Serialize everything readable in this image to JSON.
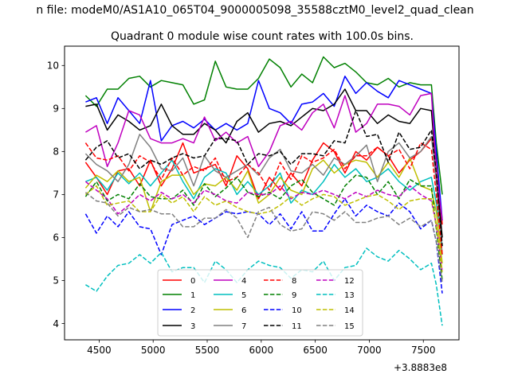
{
  "suptitle": "n file: modeM0/AS1A10_065T04_9000005098_35588cztM0_level2_quad_clean",
  "chart_data": {
    "type": "line",
    "title": "Quadrant 0 module wise count rates with 100.0s bins.",
    "xlabel": "",
    "ylabel": "",
    "offset_text": "+3.8883e8",
    "xlim": [
      4180,
      7830
    ],
    "ylim": [
      3.62,
      10.45
    ],
    "xticks": [
      4500,
      5000,
      5500,
      6000,
      6500,
      7000,
      7500
    ],
    "yticks": [
      4,
      5,
      6,
      7,
      8,
      9,
      10
    ],
    "grid": false,
    "legend": {
      "placement": "lower-center",
      "columns": 4
    },
    "x": [
      4375,
      4475,
      4575,
      4675,
      4775,
      4875,
      4975,
      5075,
      5175,
      5275,
      5375,
      5475,
      5575,
      5675,
      5775,
      5875,
      5975,
      6075,
      6175,
      6275,
      6375,
      6475,
      6575,
      6675,
      6775,
      6875,
      6975,
      7075,
      7175,
      7275,
      7375,
      7475,
      7575,
      7620,
      7675
    ],
    "series": [
      {
        "name": "0",
        "color": "#ff0000",
        "dash": false,
        "values": [
          7.75,
          7.4,
          7.0,
          7.55,
          7.6,
          7.2,
          7.8,
          7.2,
          7.6,
          8.2,
          7.5,
          7.6,
          7.7,
          7.2,
          7.9,
          7.6,
          6.9,
          7.4,
          7.1,
          7.5,
          7.2,
          7.8,
          8.2,
          8.0,
          7.5,
          8.0,
          7.8,
          8.1,
          7.9,
          7.5,
          7.8,
          8.0,
          8.3,
          7.9,
          6.3
        ]
      },
      {
        "name": "1",
        "color": "#008000",
        "dash": false,
        "values": [
          9.3,
          9.05,
          9.45,
          9.45,
          9.7,
          9.75,
          9.5,
          9.65,
          9.6,
          9.55,
          9.1,
          9.2,
          10.1,
          9.5,
          9.45,
          9.45,
          9.7,
          10.15,
          9.95,
          9.5,
          9.8,
          9.6,
          10.2,
          9.95,
          10.05,
          9.85,
          9.6,
          9.55,
          9.7,
          9.5,
          9.6,
          9.55,
          9.55,
          8.2,
          7.0
        ]
      },
      {
        "name": "2",
        "color": "#0000ff",
        "dash": false,
        "values": [
          9.15,
          9.25,
          8.65,
          9.25,
          8.95,
          8.65,
          9.65,
          8.25,
          8.6,
          8.7,
          8.55,
          8.75,
          8.5,
          8.65,
          8.5,
          8.65,
          9.65,
          9.0,
          8.9,
          8.65,
          9.1,
          9.15,
          9.35,
          9.05,
          9.75,
          9.35,
          9.6,
          9.4,
          9.25,
          9.65,
          9.55,
          9.45,
          9.35,
          8.0,
          6.4
        ]
      },
      {
        "name": "3",
        "color": "#000000",
        "dash": false,
        "values": [
          9.05,
          9.1,
          8.5,
          8.85,
          8.7,
          8.5,
          8.6,
          9.1,
          8.6,
          8.4,
          8.4,
          8.65,
          8.5,
          8.2,
          8.7,
          8.9,
          8.45,
          8.65,
          8.7,
          8.6,
          8.8,
          9.0,
          8.95,
          9.1,
          9.45,
          8.95,
          8.95,
          8.65,
          8.85,
          8.7,
          8.65,
          9.0,
          8.95,
          7.5,
          6.0
        ]
      },
      {
        "name": "4",
        "color": "#bf00bf",
        "dash": false,
        "values": [
          8.45,
          8.6,
          7.65,
          8.2,
          8.95,
          8.85,
          8.3,
          8.2,
          8.2,
          8.3,
          8.2,
          8.8,
          8.25,
          8.45,
          8.2,
          8.35,
          7.65,
          8.0,
          8.6,
          8.7,
          8.5,
          8.9,
          9.1,
          8.55,
          9.3,
          8.45,
          8.65,
          9.1,
          9.1,
          9.05,
          8.85,
          9.3,
          9.35,
          7.5,
          6.4
        ]
      },
      {
        "name": "5",
        "color": "#00bfbf",
        "dash": false,
        "values": [
          7.3,
          7.4,
          7.1,
          7.5,
          7.25,
          7.5,
          7.2,
          7.5,
          7.8,
          7.3,
          6.9,
          7.4,
          7.6,
          7.5,
          7.0,
          7.3,
          7.0,
          7.2,
          7.5,
          6.8,
          7.1,
          7.0,
          7.3,
          7.7,
          7.4,
          7.6,
          7.3,
          7.4,
          7.6,
          7.3,
          7.1,
          7.3,
          7.4,
          6.8,
          5.8
        ]
      },
      {
        "name": "6",
        "color": "#bfbf00",
        "dash": false,
        "values": [
          7.15,
          7.45,
          7.3,
          7.55,
          7.3,
          7.4,
          6.6,
          7.3,
          7.45,
          7.45,
          7.0,
          7.25,
          7.2,
          7.4,
          7.1,
          7.55,
          6.8,
          7.0,
          7.4,
          7.1,
          7.0,
          7.6,
          7.8,
          7.5,
          7.7,
          7.8,
          7.75,
          7.4,
          7.75,
          7.4,
          7.85,
          7.2,
          7.1,
          6.6,
          5.4
        ]
      },
      {
        "name": "7",
        "color": "#808080",
        "dash": false,
        "values": [
          7.95,
          7.7,
          7.55,
          7.3,
          7.7,
          8.4,
          8.1,
          7.6,
          7.55,
          7.85,
          7.2,
          7.9,
          7.55,
          7.4,
          7.55,
          7.7,
          7.45,
          7.85,
          8.05,
          7.55,
          7.5,
          7.7,
          7.45,
          7.85,
          7.7,
          7.9,
          8.15,
          7.3,
          8.0,
          8.2,
          7.85,
          8.0,
          8.35,
          7.3,
          5.6
        ]
      },
      {
        "name": "8",
        "color": "#ff0000",
        "dash": true,
        "values": [
          8.2,
          7.85,
          7.8,
          7.9,
          7.55,
          7.9,
          7.75,
          7.35,
          7.85,
          7.45,
          7.65,
          7.55,
          7.85,
          7.3,
          7.4,
          7.7,
          7.5,
          7.1,
          7.75,
          7.35,
          7.9,
          7.75,
          7.85,
          8.05,
          7.6,
          7.9,
          7.9,
          8.1,
          7.9,
          8.05,
          7.6,
          8.2,
          8.05,
          7.0,
          5.6
        ]
      },
      {
        "name": "9",
        "color": "#008000",
        "dash": true,
        "values": [
          6.95,
          7.3,
          6.85,
          7.0,
          6.9,
          7.25,
          6.95,
          6.9,
          6.9,
          7.1,
          6.75,
          7.25,
          6.95,
          7.15,
          7.4,
          7.05,
          6.95,
          7.05,
          6.9,
          7.2,
          7.35,
          7.05,
          6.9,
          6.75,
          7.2,
          7.45,
          7.4,
          7.0,
          7.3,
          6.9,
          7.35,
          7.2,
          7.2,
          6.2,
          5.0
        ]
      },
      {
        "name": "10",
        "color": "#0000ff",
        "dash": true,
        "values": [
          6.55,
          6.1,
          6.5,
          6.25,
          6.6,
          6.25,
          6.2,
          5.6,
          6.3,
          6.4,
          6.5,
          6.3,
          6.45,
          6.6,
          6.55,
          6.6,
          6.55,
          6.3,
          6.55,
          6.2,
          6.6,
          6.15,
          6.15,
          6.55,
          6.9,
          6.5,
          6.75,
          6.6,
          6.5,
          6.8,
          6.6,
          6.2,
          6.4,
          5.9,
          4.7
        ]
      },
      {
        "name": "11",
        "color": "#000000",
        "dash": true,
        "values": [
          7.8,
          8.1,
          8.25,
          7.85,
          7.95,
          7.6,
          7.8,
          7.7,
          7.85,
          7.95,
          7.85,
          7.9,
          8.3,
          8.3,
          8.25,
          7.7,
          7.95,
          7.9,
          8.0,
          7.7,
          7.95,
          7.95,
          7.9,
          8.25,
          8.2,
          8.95,
          8.35,
          8.4,
          7.75,
          8.45,
          8.05,
          8.1,
          8.5,
          7.5,
          5.8
        ]
      },
      {
        "name": "12",
        "color": "#bf00bf",
        "dash": true,
        "values": [
          7.3,
          7.1,
          6.9,
          6.55,
          6.75,
          7.0,
          6.85,
          7.05,
          6.9,
          7.0,
          6.8,
          7.1,
          7.0,
          6.85,
          6.8,
          7.05,
          7.0,
          7.0,
          7.2,
          6.9,
          7.05,
          7.0,
          7.1,
          7.0,
          6.9,
          7.05,
          6.95,
          7.1,
          7.0,
          6.95,
          7.2,
          7.0,
          6.85,
          6.3,
          5.2
        ]
      },
      {
        "name": "13",
        "color": "#00bfbf",
        "dash": true,
        "values": [
          4.9,
          4.75,
          5.1,
          5.35,
          5.4,
          5.6,
          5.4,
          5.65,
          5.2,
          5.3,
          5.3,
          4.95,
          5.45,
          5.25,
          4.95,
          5.25,
          5.45,
          5.35,
          5.3,
          5.05,
          5.25,
          5.2,
          5.45,
          5.0,
          5.3,
          5.35,
          5.75,
          5.55,
          5.45,
          5.7,
          5.5,
          5.25,
          5.4,
          4.9,
          3.95
        ]
      },
      {
        "name": "14",
        "color": "#bfbf00",
        "dash": true,
        "values": [
          7.0,
          7.2,
          6.75,
          6.8,
          6.85,
          6.6,
          6.6,
          7.0,
          6.8,
          6.95,
          6.6,
          6.95,
          6.75,
          6.85,
          6.7,
          6.6,
          6.55,
          6.6,
          6.75,
          6.95,
          6.75,
          6.9,
          7.0,
          6.95,
          6.75,
          6.85,
          6.95,
          7.0,
          6.85,
          6.65,
          6.85,
          6.9,
          6.9,
          6.3,
          5.2
        ]
      },
      {
        "name": "15",
        "color": "#808080",
        "dash": true,
        "values": [
          7.05,
          6.85,
          6.8,
          6.5,
          6.7,
          6.6,
          6.65,
          6.55,
          6.55,
          6.25,
          6.25,
          6.45,
          6.45,
          6.65,
          6.45,
          6.0,
          6.6,
          6.7,
          6.3,
          6.15,
          6.2,
          6.6,
          6.55,
          6.4,
          6.6,
          6.35,
          6.35,
          6.45,
          6.5,
          6.3,
          6.45,
          6.25,
          6.4,
          5.9,
          4.95
        ]
      }
    ]
  }
}
